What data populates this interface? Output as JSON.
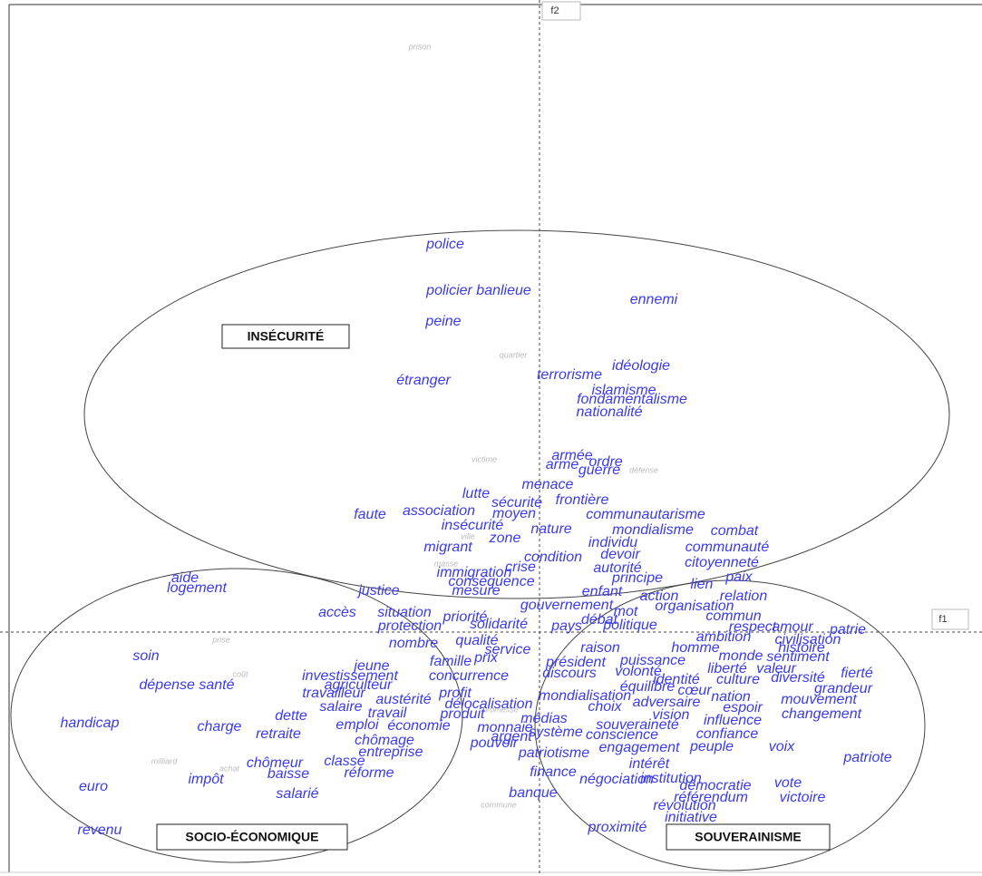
{
  "chart_data": {
    "type": "scatter",
    "xlabel": "f1",
    "ylabel": "f2",
    "xlim": [
      -5.95,
      4.88
    ],
    "ylim": [
      -2.69,
      6.97
    ],
    "groups": [
      "INSÉCURITÉ",
      "SOCIO-ÉCONOMIQUE",
      "SOUVERAINISME"
    ],
    "series": [
      {
        "color": "#3a3af0",
        "labels": [
          "police",
          "policier banlieue",
          "ennemi",
          "peine",
          "étranger",
          "idéologie",
          "terrorisme",
          "islamisme",
          "fondamentalisme",
          "nationalité",
          "armée",
          "arme",
          "ordre",
          "guerre",
          "menace",
          "lutte",
          "sécurité",
          "frontière",
          "moyen",
          "faute",
          "association",
          "communautarisme",
          "insécurité",
          "nature",
          "mondialisme",
          "combat",
          "zone",
          "individu",
          "migrant",
          "communauté",
          "condition",
          "devoir",
          "citoyenneté",
          "immigration",
          "crise",
          "autorité",
          "paix",
          "aide",
          "logement",
          "conséquence",
          "principe",
          "lien",
          "justice",
          "mesure",
          "enfant",
          "action",
          "relation",
          "gouvernement",
          "accès",
          "situation",
          "mot",
          "organisation",
          "commun",
          "priorité",
          "débat",
          "protection",
          "solidarité",
          "pays",
          "politique",
          "respect",
          "amour",
          "patrie",
          "ambition",
          "civilisation",
          "nombre",
          "qualité",
          "raison",
          "homme",
          "histoire",
          "soin",
          "service",
          "monde",
          "sentiment",
          "famille",
          "prix",
          "président",
          "puissance",
          "jeune",
          "liberté",
          "valeur",
          "discours",
          "volonté",
          "investissement",
          "concurrence",
          "identité",
          "culture",
          "diversité",
          "fierté",
          "dépense santé",
          "agriculteur",
          "équilibre",
          "cœur",
          "grandeur",
          "travailleur",
          "profit",
          "mondialisation",
          "nation",
          "mouvement",
          "austérité",
          "choix",
          "adversaire",
          "espoir",
          "salaire",
          "délocalisation",
          "travail",
          "produit",
          "vision",
          "changement",
          "handicap",
          "charge",
          "dette",
          "emploi",
          "économie",
          "monnaie",
          "médias",
          "influence",
          "retraite",
          "système",
          "souveraineté",
          "argent",
          "conscience",
          "confiance",
          "chômage",
          "pouvoir",
          "engagement",
          "peuple",
          "voix",
          "entreprise",
          "patriotisme",
          "patriote",
          "chômeur",
          "classe",
          "intérêt",
          "baisse",
          "réforme",
          "impôt",
          "finance",
          "négociation",
          "institution",
          "démocratie",
          "vote",
          "euro",
          "salarié",
          "banque",
          "référendum",
          "victoire",
          "révolution",
          "initiative",
          "revenu",
          "proximité"
        ],
        "x": [
          -1.04,
          -0.67,
          1.26,
          -1.06,
          -1.28,
          1.12,
          0.33,
          0.93,
          1.02,
          0.77,
          0.36,
          0.25,
          0.73,
          0.66,
          0.09,
          -0.7,
          -0.25,
          0.47,
          -0.28,
          -1.87,
          -1.11,
          1.17,
          -0.74,
          0.13,
          1.25,
          2.15,
          -0.38,
          0.81,
          -1.01,
          2.07,
          0.15,
          0.89,
          2.01,
          -0.72,
          -0.21,
          0.86,
          2.2,
          -3.91,
          -3.78,
          -0.53,
          1.08,
          1.79,
          -1.77,
          -0.7,
          0.69,
          1.32,
          2.25,
          0.3,
          -2.23,
          -1.49,
          0.95,
          1.71,
          2.14,
          -0.82,
          0.66,
          -1.43,
          -0.45,
          0.3,
          1.0,
          2.35,
          2.79,
          3.4,
          2.03,
          2.96,
          -1.39,
          -0.69,
          0.67,
          1.72,
          2.89,
          -4.34,
          -0.35,
          2.22,
          2.85,
          -0.98,
          -0.59,
          0.4,
          1.25,
          -1.85,
          2.07,
          2.61,
          0.33,
          1.09,
          -2.09,
          -0.78,
          1.51,
          2.19,
          2.85,
          3.5,
          -3.89,
          -2.0,
          1.19,
          1.71,
          3.35,
          -2.27,
          -0.93,
          0.5,
          2.11,
          3.08,
          -1.5,
          0.72,
          1.4,
          2.24,
          -2.19,
          -0.56,
          -1.68,
          -0.85,
          1.45,
          3.11,
          -4.96,
          -3.53,
          -2.74,
          -2.01,
          -1.33,
          -0.38,
          0.05,
          2.13,
          -2.88,
          0.18,
          1.08,
          -0.31,
          0.91,
          2.07,
          -1.71,
          -0.5,
          1.1,
          1.9,
          2.67,
          -1.64,
          0.16,
          3.62,
          -2.92,
          -2.15,
          1.21,
          -2.77,
          -1.88,
          -3.68,
          0.15,
          0.85,
          1.45,
          1.94,
          2.74,
          -4.92,
          -2.67,
          -0.07,
          1.89,
          2.9,
          1.6,
          1.67,
          -4.85,
          0.86
        ],
        "y": [
          4.27,
          3.76,
          3.66,
          3.42,
          2.77,
          2.93,
          2.83,
          2.66,
          2.56,
          2.42,
          1.94,
          1.84,
          1.87,
          1.78,
          1.62,
          1.52,
          1.42,
          1.45,
          1.3,
          1.29,
          1.33,
          1.29,
          1.17,
          1.13,
          1.12,
          1.11,
          1.03,
          0.98,
          0.93,
          0.93,
          0.82,
          0.85,
          0.76,
          0.65,
          0.71,
          0.7,
          0.6,
          0.59,
          0.48,
          0.55,
          0.59,
          0.52,
          0.45,
          0.45,
          0.44,
          0.39,
          0.39,
          0.29,
          0.21,
          0.21,
          0.22,
          0.28,
          0.17,
          0.16,
          0.13,
          0.06,
          0.08,
          0.06,
          0.07,
          0.05,
          0.05,
          0.02,
          -0.06,
          -0.09,
          -0.13,
          -0.1,
          -0.18,
          -0.18,
          -0.18,
          -0.27,
          -0.2,
          -0.27,
          -0.28,
          -0.33,
          -0.29,
          -0.34,
          -0.32,
          -0.38,
          -0.41,
          -0.41,
          -0.46,
          -0.44,
          -0.49,
          -0.49,
          -0.53,
          -0.53,
          -0.51,
          -0.46,
          -0.59,
          -0.59,
          -0.61,
          -0.65,
          -0.63,
          -0.68,
          -0.68,
          -0.71,
          -0.72,
          -0.75,
          -0.75,
          -0.83,
          -0.78,
          -0.84,
          -0.83,
          -0.8,
          -0.9,
          -0.91,
          -0.92,
          -0.91,
          -1.01,
          -1.05,
          -0.93,
          -1.03,
          -1.04,
          -1.06,
          -0.96,
          -0.98,
          -1.13,
          -1.11,
          -1.03,
          -1.16,
          -1.14,
          -1.13,
          -1.2,
          -1.23,
          -1.28,
          -1.27,
          -1.27,
          -1.33,
          -1.34,
          -1.39,
          -1.45,
          -1.43,
          -1.46,
          -1.57,
          -1.56,
          -1.63,
          -1.55,
          -1.63,
          -1.62,
          -1.7,
          -1.67,
          -1.71,
          -1.79,
          -1.78,
          -1.83,
          -1.83,
          -1.92,
          -2.05,
          -2.19,
          -2.16
        ]
      },
      {
        "color": "#bbbbbb",
        "labels": [
          "prison",
          "quartier",
          "victime",
          "défense",
          "ville",
          "masse",
          "prise",
          "coût",
          "milliard",
          "achat",
          "commune",
          "promesse"
        ],
        "x": [
          -1.32,
          -0.29,
          -0.61,
          1.15,
          -0.79,
          -1.03,
          -3.51,
          -3.3,
          -4.14,
          -3.42,
          -0.45,
          -0.43
        ],
        "y": [
          6.45,
          3.05,
          1.9,
          1.78,
          1.05,
          0.75,
          -0.09,
          -0.47,
          -1.43,
          -1.51,
          -1.91,
          -0.86
        ]
      }
    ]
  }
}
